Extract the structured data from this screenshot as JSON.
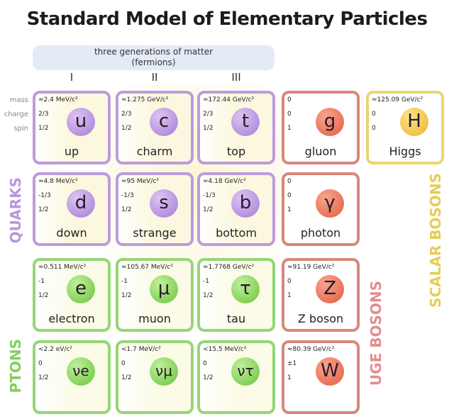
{
  "title": "Standard Model of Elementary Particles",
  "banner": {
    "line1": "three generations of matter",
    "line2": "(fermions)"
  },
  "generations": [
    "I",
    "II",
    "III"
  ],
  "row_labels": [
    "mass",
    "charge",
    "spin"
  ],
  "group_labels": {
    "quarks": "QUARKS",
    "leptons": "PTONS",
    "gauge": "UGE BOSONS",
    "scalar": "SCALAR BOSONS"
  },
  "colors": {
    "quark": "#bd9bdc",
    "lepton": "#95d675",
    "gauge": "#d8877c",
    "scalar": "#ead673"
  },
  "particles": [
    {
      "group": "quark",
      "mass": "≈2.4 MeV/c²",
      "charge": "2/3",
      "spin": "1/2",
      "symbol": "u",
      "name": "up"
    },
    {
      "group": "quark",
      "mass": "≈1.275 GeV/c²",
      "charge": "2/3",
      "spin": "1/2",
      "symbol": "c",
      "name": "charm"
    },
    {
      "group": "quark",
      "mass": "≈172.44 GeV/c²",
      "charge": "2/3",
      "spin": "1/2",
      "symbol": "t",
      "name": "top"
    },
    {
      "group": "gauge",
      "mass": "0",
      "charge": "0",
      "spin": "1",
      "symbol": "g",
      "name": "gluon"
    },
    {
      "group": "scalar",
      "mass": "≈125.09 GeV/c²",
      "charge": "0",
      "spin": "0",
      "symbol": "H",
      "name": "Higgs"
    },
    {
      "group": "quark",
      "mass": "≈4.8 MeV/c²",
      "charge": "-1/3",
      "spin": "1/2",
      "symbol": "d",
      "name": "down"
    },
    {
      "group": "quark",
      "mass": "≈95 MeV/c²",
      "charge": "-1/3",
      "spin": "1/2",
      "symbol": "s",
      "name": "strange"
    },
    {
      "group": "quark",
      "mass": "≈4.18 GeV/c²",
      "charge": "-1/3",
      "spin": "1/2",
      "symbol": "b",
      "name": "bottom"
    },
    {
      "group": "gauge",
      "mass": "0",
      "charge": "0",
      "spin": "1",
      "symbol": "γ",
      "name": "photon"
    },
    {
      "group": "lepton",
      "mass": "≈0.511 MeV/c²",
      "charge": "-1",
      "spin": "1/2",
      "symbol": "e",
      "name": "electron"
    },
    {
      "group": "lepton",
      "mass": "≈105.67 MeV/c²",
      "charge": "-1",
      "spin": "1/2",
      "symbol": "μ",
      "name": "muon"
    },
    {
      "group": "lepton",
      "mass": "≈1.7768 GeV/c²",
      "charge": "-1",
      "spin": "1/2",
      "symbol": "τ",
      "name": "tau"
    },
    {
      "group": "gauge",
      "mass": "≈91.19 GeV/c²",
      "charge": "0",
      "spin": "1",
      "symbol": "Z",
      "name": "Z boson"
    },
    {
      "group": "lepton",
      "mass": "<2.2 eV/c²",
      "charge": "0",
      "spin": "1/2",
      "symbol": "νe",
      "name": ""
    },
    {
      "group": "lepton",
      "mass": "<1.7 MeV/c²",
      "charge": "0",
      "spin": "1/2",
      "symbol": "νμ",
      "name": ""
    },
    {
      "group": "lepton",
      "mass": "<15.5 MeV/c²",
      "charge": "0",
      "spin": "1/2",
      "symbol": "ντ",
      "name": ""
    },
    {
      "group": "gauge",
      "mass": "≈80.39 GeV/c²",
      "charge": "±1",
      "spin": "1",
      "symbol": "W",
      "name": ""
    }
  ]
}
